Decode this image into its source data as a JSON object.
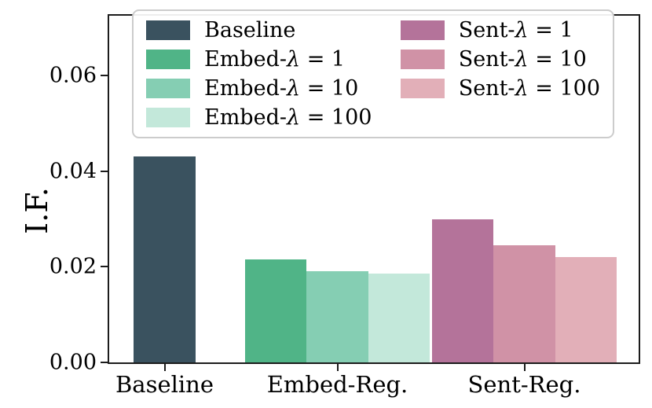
{
  "chart_data": {
    "type": "bar",
    "title": "",
    "xlabel": "",
    "ylabel": "I.F.",
    "ylim": [
      0,
      0.0725
    ],
    "yticks": [
      0,
      0.02,
      0.04,
      0.06
    ],
    "ytick_labels": [
      "0.00",
      "0.02",
      "0.04",
      "0.06"
    ],
    "categories": [
      "Baseline",
      "Embed-Reg.",
      "Sent-Reg."
    ],
    "grid": false,
    "legend": {
      "position": "upper center",
      "columns": 2,
      "border_color": "#cccccc"
    },
    "frame_color": "#1c1c1c",
    "series": [
      {
        "label": "Baseline",
        "group": "Baseline",
        "value": 0.043,
        "color": "#3a525f"
      },
      {
        "label": "Embed-λ = 1",
        "group": "Embed-Reg.",
        "value": 0.0215,
        "color": "#50b487"
      },
      {
        "label": "Embed-λ = 10",
        "group": "Embed-Reg.",
        "value": 0.019,
        "color": "#85ceb3"
      },
      {
        "label": "Embed-λ = 100",
        "group": "Embed-Reg.",
        "value": 0.0185,
        "color": "#c3e8da"
      },
      {
        "label": "Sent-λ = 1",
        "group": "Sent-Reg.",
        "value": 0.03,
        "color": "#b4739a"
      },
      {
        "label": "Sent-λ = 10",
        "group": "Sent-Reg.",
        "value": 0.0245,
        "color": "#d092a6"
      },
      {
        "label": "Sent-λ = 100",
        "group": "Sent-Reg.",
        "value": 0.022,
        "color": "#e2afb8"
      }
    ]
  }
}
